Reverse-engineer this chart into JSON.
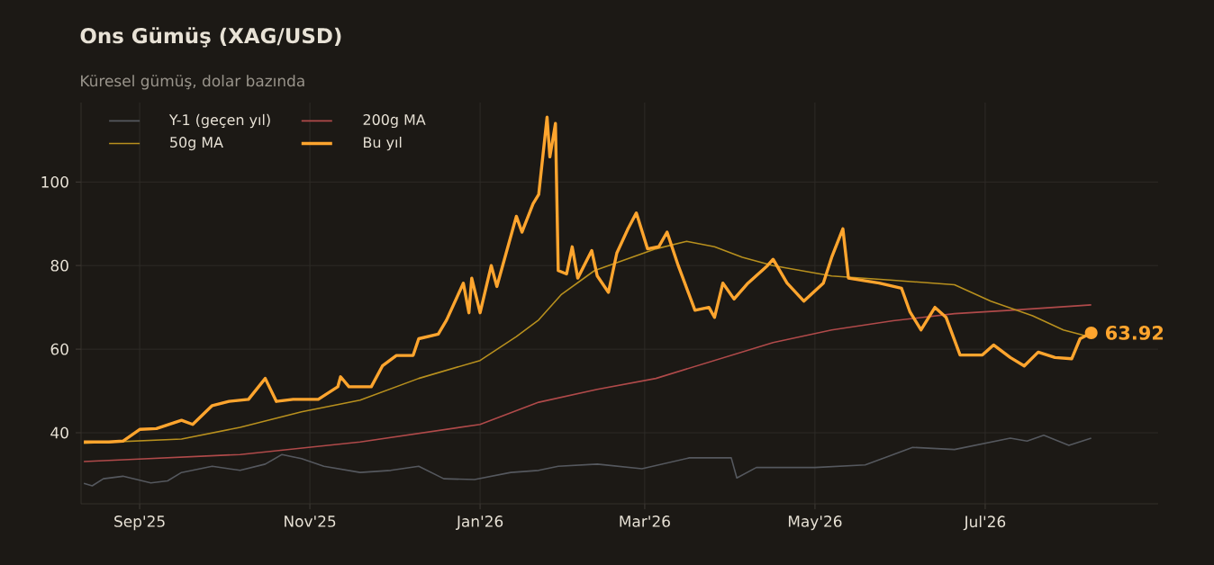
{
  "chart_data": {
    "type": "line",
    "title": "Ons Gümüş (XAG/USD)",
    "subtitle": "Küresel gümüş, dolar bazında",
    "xlim": [
      "2025-08-11",
      "2026-09-01"
    ],
    "ylim": [
      23,
      119
    ],
    "xticks": [
      {
        "value": "2025-09-01",
        "label": "Sep'25"
      },
      {
        "value": "2025-11-01",
        "label": "Nov'25"
      },
      {
        "value": "2026-01-01",
        "label": "Jan'26"
      },
      {
        "value": "2026-03-01",
        "label": "Mar'26"
      },
      {
        "value": "2026-05-01",
        "label": "May'26"
      },
      {
        "value": "2026-07-01",
        "label": "Jul'26"
      }
    ],
    "yticks": [
      40,
      60,
      80,
      100
    ],
    "grid": true,
    "legend": "top left",
    "marker": "none",
    "line_style": "solid",
    "annotations": [
      {
        "text": "63.92",
        "x": "2026-08-08",
        "y": 63.92
      }
    ],
    "series": [
      {
        "name": "Y-1 (geçen yıl)",
        "color": "#55585e",
        "x": [
          "2025-08-12",
          "2025-08-15",
          "2025-08-19",
          "2025-08-26",
          "2025-09-05",
          "2025-09-11",
          "2025-09-16",
          "2025-09-27",
          "2025-10-07",
          "2025-10-16",
          "2025-10-22",
          "2025-10-29",
          "2025-11-06",
          "2025-11-19",
          "2025-11-30",
          "2025-12-10",
          "2025-12-19",
          "2025-12-30",
          "2026-01-12",
          "2026-01-22",
          "2026-01-29",
          "2026-02-12",
          "2026-02-28",
          "2026-03-17",
          "2026-04-01",
          "2026-04-03",
          "2026-04-10",
          "2026-05-01",
          "2026-05-19",
          "2026-06-05",
          "2026-06-20",
          "2026-07-10",
          "2026-07-16",
          "2026-07-22",
          "2026-07-31",
          "2026-08-08"
        ],
        "values": [
          27.9,
          27.3,
          29,
          29.6,
          28,
          28.5,
          30.5,
          32,
          31,
          32.5,
          34.8,
          33.8,
          32,
          30.5,
          31,
          32,
          29,
          28.8,
          30.5,
          31,
          32,
          32.5,
          31.4,
          34,
          34,
          29.2,
          31.7,
          31.7,
          32.3,
          36.5,
          36,
          38.7,
          38,
          39.4,
          37,
          38.7
        ]
      },
      {
        "name": "200g MA",
        "color": "#b04a4a",
        "x": [
          "2025-08-12",
          "2025-10-07",
          "2025-11-19",
          "2026-01-01",
          "2026-01-22",
          "2026-02-12",
          "2026-03-05",
          "2026-03-26",
          "2026-04-16",
          "2026-05-07",
          "2026-05-29",
          "2026-06-20",
          "2026-07-10",
          "2026-08-08"
        ],
        "values": [
          33.1,
          34.8,
          37.8,
          42,
          47.3,
          50.4,
          53,
          57.3,
          61.6,
          64.6,
          66.8,
          68.5,
          69.3,
          70.6
        ]
      },
      {
        "name": "50g MA",
        "color": "#b8901e",
        "x": [
          "2025-08-12",
          "2025-09-16",
          "2025-10-07",
          "2025-10-29",
          "2025-11-19",
          "2025-12-10",
          "2026-01-01",
          "2026-01-14",
          "2026-01-22",
          "2026-01-30",
          "2026-02-11",
          "2026-03-05",
          "2026-03-16",
          "2026-03-26",
          "2026-04-05",
          "2026-04-16",
          "2026-05-07",
          "2026-05-29",
          "2026-06-20",
          "2026-07-03",
          "2026-07-18",
          "2026-07-29",
          "2026-08-06"
        ],
        "values": [
          37.5,
          38.5,
          41.3,
          45,
          47.8,
          53,
          57.3,
          63,
          67,
          73,
          78.8,
          84,
          85.8,
          84.5,
          82,
          80,
          77.5,
          76.5,
          75.4,
          71.5,
          68,
          64.6,
          63.2
        ]
      },
      {
        "name": "Bu yıl",
        "color": "#ffa52e",
        "x": [
          "2025-08-12",
          "2025-08-21",
          "2025-08-26",
          "2025-09-01",
          "2025-09-07",
          "2025-09-16",
          "2025-09-20",
          "2025-09-27",
          "2025-10-03",
          "2025-10-10",
          "2025-10-16",
          "2025-10-20",
          "2025-10-26",
          "2025-11-04",
          "2025-11-11",
          "2025-11-12",
          "2025-11-15",
          "2025-11-23",
          "2025-11-27",
          "2025-12-02",
          "2025-12-08",
          "2025-12-10",
          "2025-12-17",
          "2025-12-20",
          "2025-12-26",
          "2025-12-28",
          "2025-12-29",
          "2026-01-01",
          "2026-01-05",
          "2026-01-07",
          "2026-01-14",
          "2026-01-16",
          "2026-01-20",
          "2026-01-22",
          "2026-01-25",
          "2026-01-26",
          "2026-01-28",
          "2026-01-29",
          "2026-02-01",
          "2026-02-03",
          "2026-02-05",
          "2026-02-10",
          "2026-02-12",
          "2026-02-16",
          "2026-02-19",
          "2026-02-23",
          "2026-02-26",
          "2026-03-02",
          "2026-03-06",
          "2026-03-09",
          "2026-03-13",
          "2026-03-19",
          "2026-03-24",
          "2026-03-26",
          "2026-03-29",
          "2026-04-02",
          "2026-04-07",
          "2026-04-14",
          "2026-04-16",
          "2026-04-21",
          "2026-04-27",
          "2026-05-04",
          "2026-05-07",
          "2026-05-11",
          "2026-05-13",
          "2026-05-24",
          "2026-06-01",
          "2026-06-04",
          "2026-06-08",
          "2026-06-13",
          "2026-06-17",
          "2026-06-22",
          "2026-06-30",
          "2026-07-04",
          "2026-07-10",
          "2026-07-15",
          "2026-07-20",
          "2026-07-26",
          "2026-08-01",
          "2026-08-04",
          "2026-08-08"
        ],
        "values": [
          37.8,
          37.8,
          38,
          40.8,
          41,
          43,
          42,
          46.5,
          47.5,
          48,
          53,
          47.5,
          48,
          48,
          51,
          53.4,
          51,
          51,
          56,
          58.5,
          58.5,
          62.5,
          63.6,
          67,
          75.8,
          68.7,
          77,
          68.7,
          80,
          75,
          91.8,
          88,
          94.8,
          97,
          115.5,
          106,
          114,
          78.8,
          78,
          84.5,
          77,
          83.6,
          77.5,
          73.6,
          83,
          88.8,
          92.6,
          84,
          84.5,
          88,
          80,
          69.3,
          70,
          67.6,
          75.8,
          72,
          75.8,
          80,
          81.5,
          75.8,
          71.5,
          75.8,
          82,
          88.8,
          77,
          75.8,
          74.6,
          69,
          64.6,
          70,
          67.6,
          58.6,
          58.6,
          61,
          58,
          56,
          59.3,
          58,
          57.7,
          62.5,
          63.92
        ]
      }
    ]
  }
}
